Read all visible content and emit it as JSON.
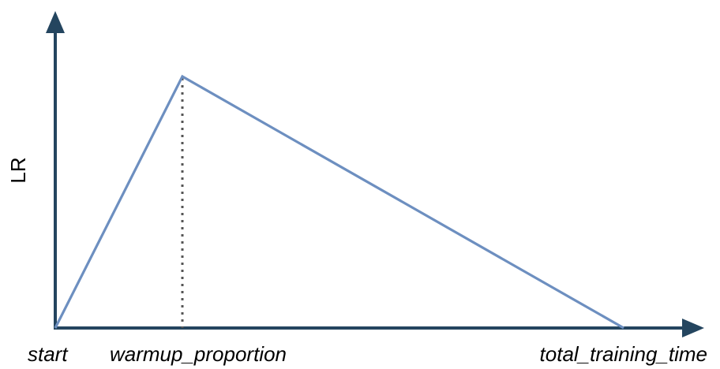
{
  "chart_data": {
    "type": "line",
    "title": "",
    "xlabel": "",
    "ylabel": "LR",
    "categories": [
      "start",
      "warmup_proportion",
      "total_training_time"
    ],
    "series": [
      {
        "values": [
          0,
          1,
          0
        ]
      }
    ],
    "ylim": [
      0,
      1
    ],
    "grid": false,
    "legend": "none",
    "annotations": [
      {
        "type": "dotted-vertical-line",
        "at": "warmup_proportion"
      }
    ],
    "colors": {
      "axis": "#24455f",
      "line": "#6d8fc0",
      "guide": "#555555"
    }
  }
}
